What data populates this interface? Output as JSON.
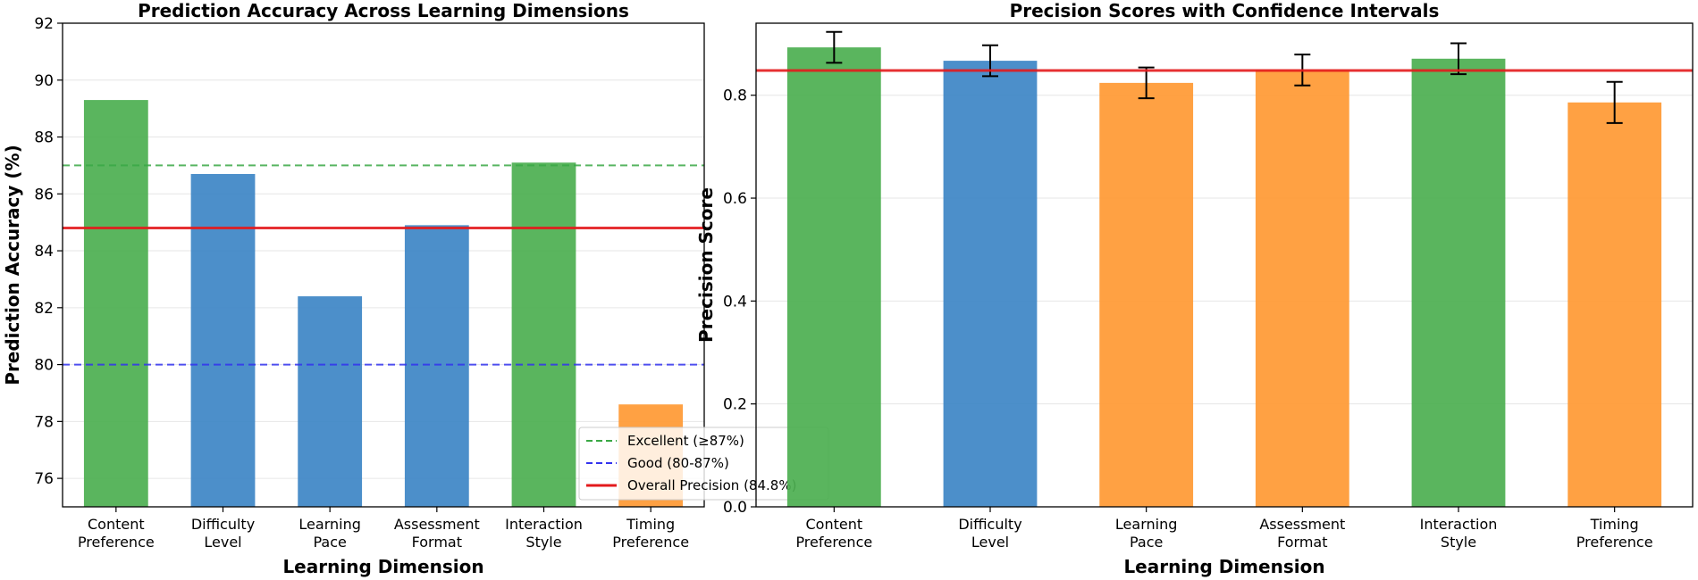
{
  "colors": {
    "excellent": "#4caf50",
    "good": "#3d85c6",
    "below": "#ff9933",
    "overall": "#e31a1c",
    "excellent_line": "#3aa845",
    "good_line": "#3333ee",
    "errorbar": "#000000",
    "grid": "#e6e6e6"
  },
  "chart_data": [
    {
      "type": "bar",
      "title": "Prediction Accuracy Across Learning Dimensions",
      "xlabel": "Learning Dimension",
      "ylabel": "Prediction Accuracy (%)",
      "ylim": [
        75,
        92
      ],
      "yticks": [
        76,
        78,
        80,
        82,
        84,
        86,
        88,
        90,
        92
      ],
      "ytick_labels": [
        "76",
        "78",
        "80",
        "82",
        "84",
        "86",
        "88",
        "90",
        "92"
      ],
      "grid": true,
      "categories": [
        [
          "Content",
          "Preference"
        ],
        [
          "Difficulty",
          "Level"
        ],
        [
          "Learning",
          "Pace"
        ],
        [
          "Assessment",
          "Format"
        ],
        [
          "Interaction",
          "Style"
        ],
        [
          "Timing",
          "Preference"
        ]
      ],
      "values": [
        89.3,
        86.7,
        82.4,
        84.9,
        87.1,
        78.6
      ],
      "bar_colors": [
        "excellent",
        "good",
        "good",
        "good",
        "excellent",
        "below"
      ],
      "reference_lines": [
        {
          "name": "Excellent (≥87%)",
          "y": 87,
          "style": "dashed",
          "color": "excellent_line"
        },
        {
          "name": "Good (80-87%)",
          "y": 80,
          "style": "dashed",
          "color": "good_line"
        },
        {
          "name": "Overall Precision (84.8%)",
          "y": 84.8,
          "style": "solid",
          "color": "overall"
        }
      ],
      "legend_position": "lower-right"
    },
    {
      "type": "bar",
      "title": "Precision Scores with Confidence Intervals",
      "xlabel": "Learning Dimension",
      "ylabel": "Precision Score",
      "ylim": [
        0,
        0.94
      ],
      "yticks": [
        0,
        0.2,
        0.4,
        0.6,
        0.8
      ],
      "ytick_labels": [
        "0.0",
        "0.2",
        "0.4",
        "0.6",
        "0.8"
      ],
      "grid": true,
      "categories": [
        [
          "Content",
          "Preference"
        ],
        [
          "Difficulty",
          "Level"
        ],
        [
          "Learning",
          "Pace"
        ],
        [
          "Assessment",
          "Format"
        ],
        [
          "Interaction",
          "Style"
        ],
        [
          "Timing",
          "Preference"
        ]
      ],
      "values": [
        0.893,
        0.867,
        0.824,
        0.849,
        0.871,
        0.786
      ],
      "errors": [
        0.03,
        0.03,
        0.03,
        0.03,
        0.03,
        0.04
      ],
      "bar_colors": [
        "excellent",
        "good",
        "below",
        "below",
        "excellent",
        "below"
      ],
      "reference_lines": [
        {
          "name": "Overall Precision",
          "y": 0.848,
          "style": "solid",
          "color": "overall"
        }
      ]
    }
  ]
}
